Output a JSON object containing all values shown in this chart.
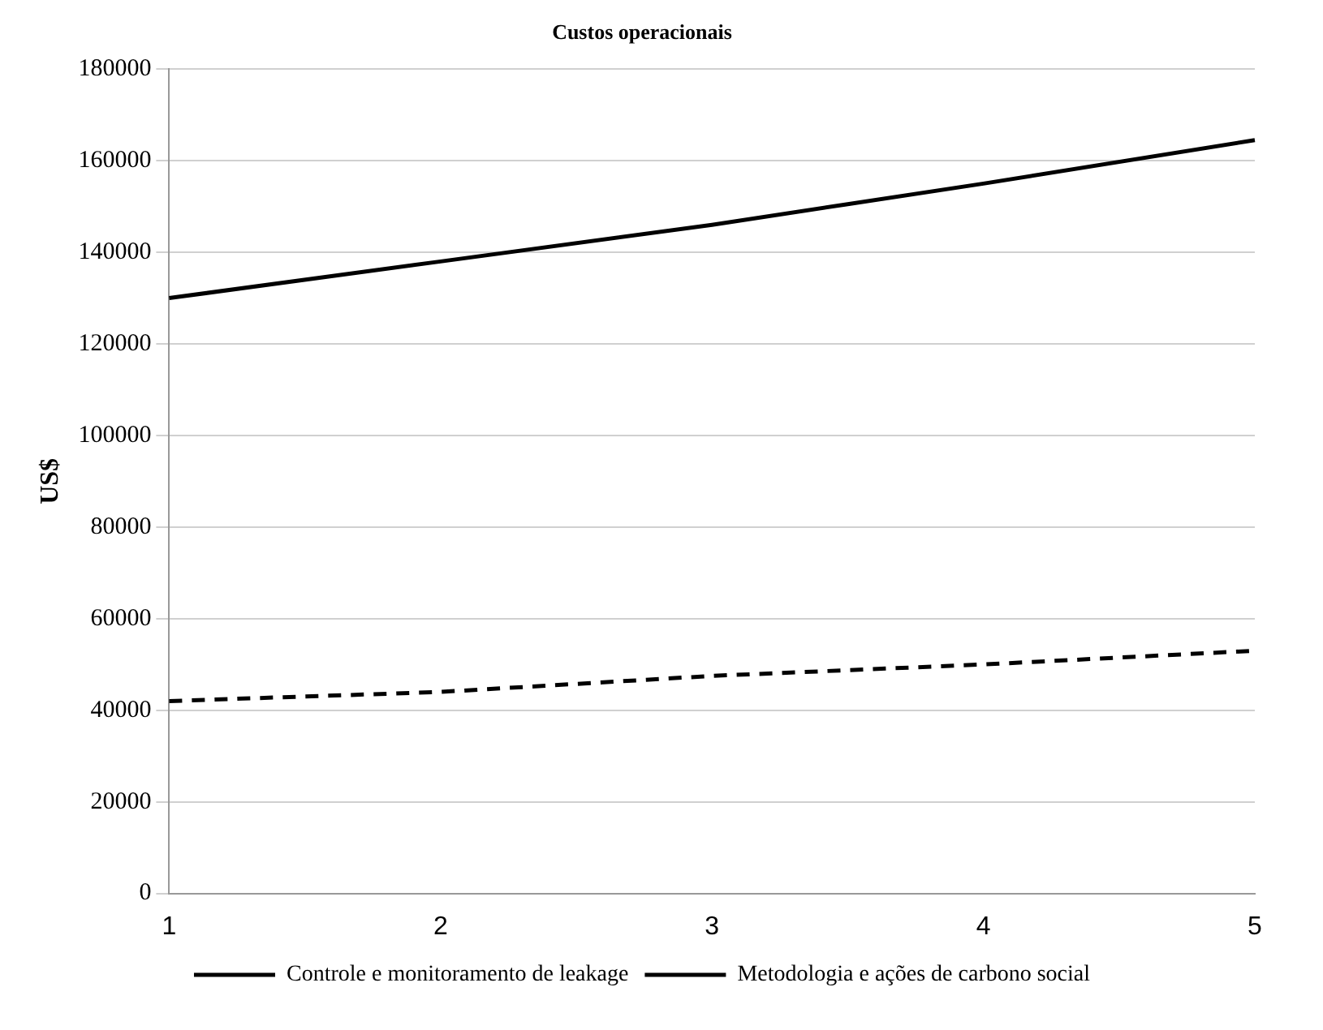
{
  "chart_data": {
    "type": "line",
    "title": "Custos operacionais",
    "ylabel": "US$",
    "categories": [
      "1",
      "2",
      "3",
      "4",
      "5"
    ],
    "series": [
      {
        "name": "Controle e monitoramento de leakage",
        "color": "#000000",
        "line_style": "dashed",
        "values": [
          42000,
          44000,
          47500,
          50000,
          53000
        ]
      },
      {
        "name": "Metodologia e ações de carbono social",
        "color": "#000000",
        "line_style": "solid",
        "values": [
          130000,
          138000,
          146000,
          155000,
          164500
        ]
      }
    ],
    "ylim": [
      0,
      180000
    ],
    "yticks": [
      0,
      20000,
      40000,
      60000,
      80000,
      100000,
      120000,
      140000,
      160000,
      180000
    ],
    "grid": "y",
    "legend": "bottom",
    "marker": "none"
  }
}
